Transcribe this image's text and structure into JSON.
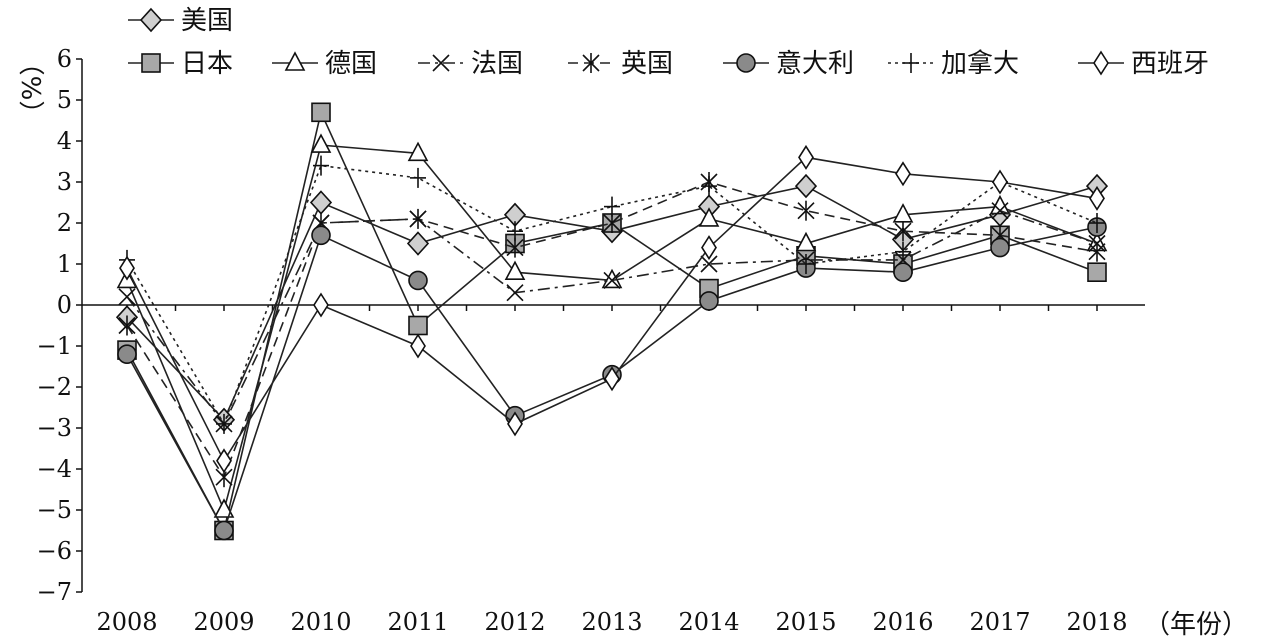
{
  "chart_data": {
    "type": "line",
    "ylabel": "（%）",
    "xlabel": "（年份）",
    "ylim": [
      -7,
      6
    ],
    "y_ticks": [
      6,
      5,
      4,
      3,
      2,
      1,
      0,
      -1,
      -2,
      -3,
      -4,
      -5,
      -6,
      -7
    ],
    "categories": [
      "2008",
      "2009",
      "2010",
      "2011",
      "2012",
      "2013",
      "2014",
      "2015",
      "2016",
      "2017",
      "2018"
    ],
    "grid": false,
    "legend_position": "top",
    "series": [
      {
        "name": "美国",
        "marker": "diamond-filled",
        "dash": "solid",
        "values": [
          -0.3,
          -2.8,
          2.5,
          1.5,
          2.2,
          1.8,
          2.4,
          2.9,
          1.6,
          2.2,
          2.9
        ]
      },
      {
        "name": "日本",
        "marker": "square",
        "dash": "solid",
        "values": [
          -1.1,
          -5.5,
          4.7,
          -0.5,
          1.5,
          2.0,
          0.4,
          1.2,
          1.0,
          1.7,
          0.8
        ]
      },
      {
        "name": "德国",
        "marker": "triangle",
        "dash": "solid",
        "values": [
          0.6,
          -5.0,
          3.9,
          3.7,
          0.8,
          0.6,
          2.1,
          1.5,
          2.2,
          2.4,
          1.5
        ]
      },
      {
        "name": "法国",
        "marker": "x",
        "dash": "dashdot",
        "values": [
          0.2,
          -2.9,
          2.0,
          2.1,
          0.3,
          0.6,
          1.0,
          1.1,
          1.1,
          2.3,
          1.5
        ]
      },
      {
        "name": "英国",
        "marker": "asterisk",
        "dash": "dashed",
        "values": [
          -0.5,
          -4.2,
          2.0,
          2.1,
          1.4,
          2.0,
          3.0,
          2.3,
          1.8,
          1.7,
          1.3
        ]
      },
      {
        "name": "意大利",
        "marker": "circle",
        "dash": "solid",
        "values": [
          -1.2,
          -5.5,
          1.7,
          0.6,
          -2.7,
          -1.7,
          0.1,
          0.9,
          0.8,
          1.4,
          1.9
        ]
      },
      {
        "name": "加拿大",
        "marker": "plus",
        "dash": "dotted",
        "values": [
          1.1,
          -2.9,
          3.4,
          3.1,
          1.8,
          2.4,
          2.9,
          1.0,
          1.3,
          3.0,
          2.0
        ]
      },
      {
        "name": "西班牙",
        "marker": "diamond-open",
        "dash": "solid",
        "values": [
          0.9,
          -3.8,
          0.0,
          -1.0,
          -2.9,
          -1.8,
          1.4,
          3.6,
          3.2,
          3.0,
          2.6
        ]
      }
    ]
  }
}
